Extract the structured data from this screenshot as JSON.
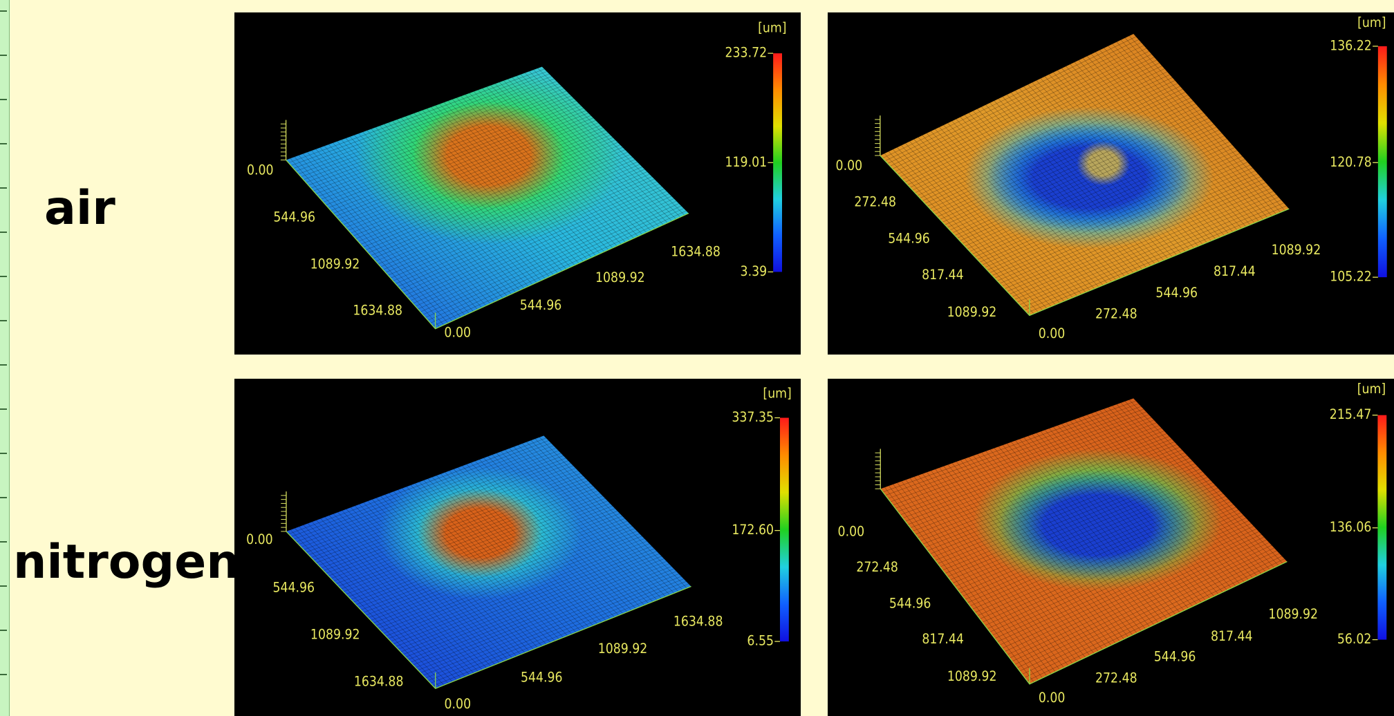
{
  "rows": [
    {
      "label": "air"
    },
    {
      "label": "nitrogen"
    }
  ],
  "panels": [
    {
      "unit": "[um]",
      "colorbar": [
        "233.72",
        "119.01",
        "3.39"
      ],
      "z_axis": "0.00",
      "y_axis": [
        "544.96",
        "1089.92",
        "1634.88"
      ],
      "x_axis": [
        "0.00",
        "544.96",
        "1089.92",
        "1634.88"
      ]
    },
    {
      "unit": "[um]",
      "colorbar": [
        "136.22",
        "120.78",
        "105.22"
      ],
      "z_axis": "0.00",
      "y_axis": [
        "272.48",
        "544.96",
        "817.44",
        "1089.92"
      ],
      "x_axis": [
        "0.00",
        "272.48",
        "544.96",
        "817.44",
        "1089.92"
      ]
    },
    {
      "unit": "[um]",
      "colorbar": [
        "337.35",
        "172.60",
        "6.55"
      ],
      "z_axis": "0.00",
      "y_axis": [
        "544.96",
        "1089.92",
        "1634.88"
      ],
      "x_axis": [
        "0.00",
        "544.96",
        "1089.92",
        "1634.88"
      ]
    },
    {
      "unit": "[um]",
      "colorbar": [
        "215.47",
        "136.06",
        "56.02"
      ],
      "z_axis": "0.00",
      "y_axis": [
        "272.48",
        "544.96",
        "817.44",
        "1089.92"
      ],
      "x_axis": [
        "0.00",
        "272.48",
        "544.96",
        "817.44",
        "1089.92"
      ]
    }
  ]
}
